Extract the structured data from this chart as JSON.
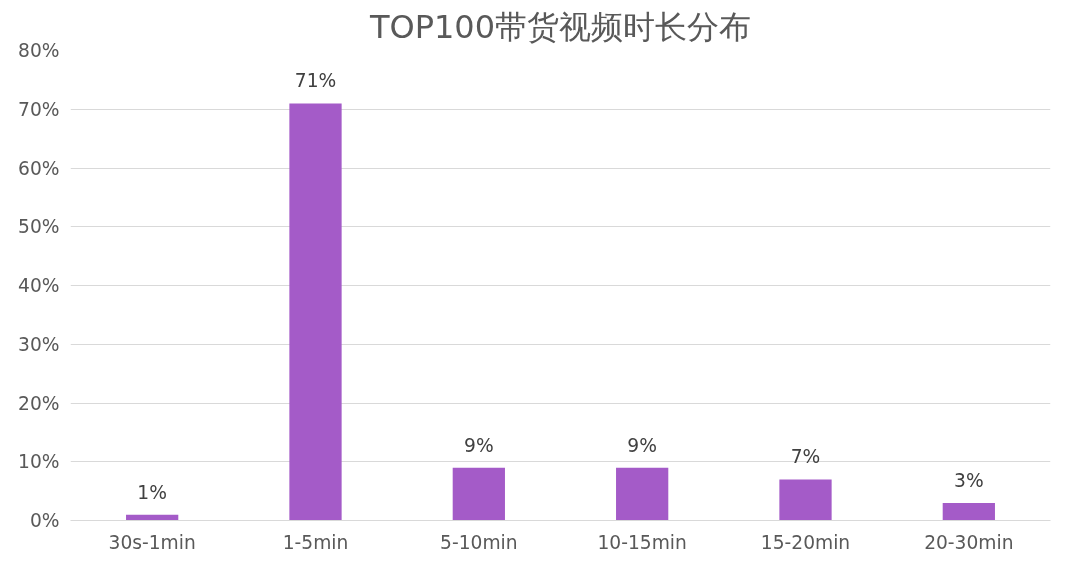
{
  "chart_data": {
    "type": "bar",
    "title": "TOP100带货视频时长分布",
    "categories": [
      "30s-1min",
      "1-5min",
      "5-10min",
      "10-15min",
      "15-20min",
      "20-30min"
    ],
    "values": [
      1,
      71,
      9,
      9,
      7,
      3
    ],
    "value_labels": [
      "1%",
      "71%",
      "9%",
      "9%",
      "7%",
      "3%"
    ],
    "color": "#a45bc8",
    "ylim": [
      0,
      80
    ],
    "yticks": [
      {
        "value": 0,
        "label": "0%"
      },
      {
        "value": 10,
        "label": "10%"
      },
      {
        "value": 20,
        "label": "20%"
      },
      {
        "value": 30,
        "label": "30%"
      },
      {
        "value": 40,
        "label": "40%"
      },
      {
        "value": 50,
        "label": "50%"
      },
      {
        "value": 60,
        "label": "60%"
      },
      {
        "value": 70,
        "label": "70%"
      },
      {
        "value": 80,
        "label": "80%"
      }
    ],
    "grid": "y"
  }
}
